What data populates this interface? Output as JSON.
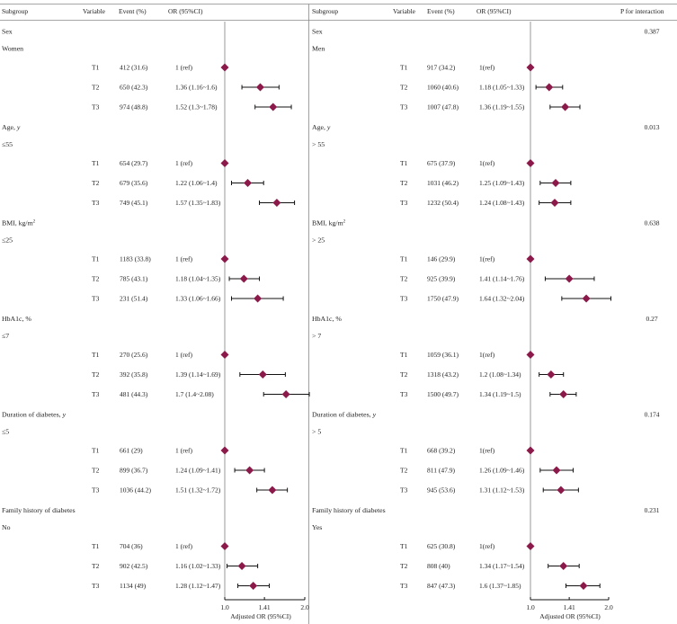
{
  "chart_data": {
    "type": "forest",
    "x_scale": "log",
    "x_ticks": [
      {
        "value": 1.0,
        "label": "1.0"
      },
      {
        "value": 1.41,
        "label": "1.41"
      },
      {
        "value": 2.0,
        "label": "2.0"
      }
    ],
    "xlabel": "Adjusted OR (95%CI)",
    "colors": {
      "marker": "#8b1a4a",
      "line": "#111111",
      "ref_line": "#999999",
      "rule": "#888888"
    },
    "headers": {
      "subgroup": "Subgroup",
      "variable": "Variable",
      "event": "Event (%)",
      "or": "OR (95%CI)",
      "p_interaction": "P for interaction"
    },
    "panels": [
      {
        "name": "left",
        "blocks": [
          {
            "title": "Sex",
            "title_html": "Sex",
            "level": "Women",
            "level_html": "Women",
            "p": "",
            "rows": [
              {
                "variable": "T1",
                "event": "412 (31.6)",
                "or_text": "1 (ref)",
                "or": 1.0,
                "lo": null,
                "hi": null
              },
              {
                "variable": "T2",
                "event": "650 (42.3)",
                "or_text": "1.36 (1.16~1.6)",
                "or": 1.36,
                "lo": 1.16,
                "hi": 1.6
              },
              {
                "variable": "T3",
                "event": "974 (48.8)",
                "or_text": "1.52 (1.3~1.78)",
                "or": 1.52,
                "lo": 1.3,
                "hi": 1.78
              }
            ]
          },
          {
            "title": "Age, y",
            "title_html": "Age, <tspan font-style=\"italic\">y</tspan>",
            "level": "≤55",
            "level_html": "≤55",
            "p": "",
            "rows": [
              {
                "variable": "T1",
                "event": "654 (29.7)",
                "or_text": "1 (ref)",
                "or": 1.0,
                "lo": null,
                "hi": null
              },
              {
                "variable": "T2",
                "event": "679 (35.6)",
                "or_text": "1.22 (1.06~1.4)",
                "or": 1.22,
                "lo": 1.06,
                "hi": 1.4
              },
              {
                "variable": "T3",
                "event": "749 (45.1)",
                "or_text": "1.57 (1.35~1.83)",
                "or": 1.57,
                "lo": 1.35,
                "hi": 1.83
              }
            ]
          },
          {
            "title": "BMI, kg/m2",
            "title_html": "BMI, kg/m<tspan font-size=\"5\" dy=\"-3\">2</tspan>",
            "level": "≤25",
            "level_html": "≤25",
            "p": "",
            "rows": [
              {
                "variable": "T1",
                "event": "1183 (33.8)",
                "or_text": "1 (ref)",
                "or": 1.0,
                "lo": null,
                "hi": null
              },
              {
                "variable": "T2",
                "event": "785 (43.1)",
                "or_text": "1.18 (1.04~1.35)",
                "or": 1.18,
                "lo": 1.04,
                "hi": 1.35
              },
              {
                "variable": "T3",
                "event": "231 (51.4)",
                "or_text": "1.33 (1.06~1.66)",
                "or": 1.33,
                "lo": 1.06,
                "hi": 1.66
              }
            ]
          },
          {
            "title": "HbA1c, %",
            "title_html": "HbA1c, %",
            "level": "≤7",
            "level_html": "≤7",
            "p": "",
            "rows": [
              {
                "variable": "T1",
                "event": "270 (25.6)",
                "or_text": "1 (ref)",
                "or": 1.0,
                "lo": null,
                "hi": null
              },
              {
                "variable": "T2",
                "event": "392 (35.8)",
                "or_text": "1.39 (1.14~1.69)",
                "or": 1.39,
                "lo": 1.14,
                "hi": 1.69
              },
              {
                "variable": "T3",
                "event": "481 (44.3)",
                "or_text": "1.7 (1.4~2.08)",
                "or": 1.7,
                "lo": 1.4,
                "hi": 2.08
              }
            ]
          },
          {
            "title": "Duration of diabetes, y",
            "title_html": "Duration of diabetes, <tspan font-style=\"italic\">y</tspan>",
            "level": "≤5",
            "level_html": "≤5",
            "p": "",
            "rows": [
              {
                "variable": "T1",
                "event": "661 (29)",
                "or_text": "1 (ref)",
                "or": 1.0,
                "lo": null,
                "hi": null
              },
              {
                "variable": "T2",
                "event": "899 (36.7)",
                "or_text": "1.24 (1.09~1.41)",
                "or": 1.24,
                "lo": 1.09,
                "hi": 1.41
              },
              {
                "variable": "T3",
                "event": "1036 (44.2)",
                "or_text": "1.51 (1.32~1.72)",
                "or": 1.51,
                "lo": 1.32,
                "hi": 1.72
              }
            ]
          },
          {
            "title": "Family history of diabetes",
            "title_html": "Family history of diabetes",
            "level": "No",
            "level_html": "No",
            "p": "",
            "rows": [
              {
                "variable": "T1",
                "event": "704 (36)",
                "or_text": "1 (ref)",
                "or": 1.0,
                "lo": null,
                "hi": null
              },
              {
                "variable": "T2",
                "event": "902 (42.5)",
                "or_text": "1.16 (1.02~1.33)",
                "or": 1.16,
                "lo": 1.02,
                "hi": 1.33
              },
              {
                "variable": "T3",
                "event": "1134 (49)",
                "or_text": "1.28 (1.12~1.47)",
                "or": 1.28,
                "lo": 1.12,
                "hi": 1.47
              }
            ]
          }
        ]
      },
      {
        "name": "right",
        "blocks": [
          {
            "title": "Sex",
            "title_html": "Sex",
            "level": "Men",
            "level_html": "Men",
            "p": "0.387",
            "rows": [
              {
                "variable": "T1",
                "event": "917 (34.2)",
                "or_text": "1(ref)",
                "or": 1.0,
                "lo": null,
                "hi": null
              },
              {
                "variable": "T2",
                "event": "1060 (40.6)",
                "or_text": "1.18 (1.05~1.33)",
                "or": 1.18,
                "lo": 1.05,
                "hi": 1.33
              },
              {
                "variable": "T3",
                "event": "1007 (47.8)",
                "or_text": "1.36 (1.19~1.55)",
                "or": 1.36,
                "lo": 1.19,
                "hi": 1.55
              }
            ]
          },
          {
            "title": "Age, y",
            "title_html": "Age, <tspan font-style=\"italic\">y</tspan>",
            "level": "> 55",
            "level_html": "&gt; 55",
            "p": "0.013",
            "rows": [
              {
                "variable": "T1",
                "event": "675 (37.9)",
                "or_text": "1(ref)",
                "or": 1.0,
                "lo": null,
                "hi": null
              },
              {
                "variable": "T2",
                "event": "1031 (46.2)",
                "or_text": "1.25 (1.09~1.43)",
                "or": 1.25,
                "lo": 1.09,
                "hi": 1.43
              },
              {
                "variable": "T3",
                "event": "1232 (50.4)",
                "or_text": "1.24 (1.08~1.43)",
                "or": 1.24,
                "lo": 1.08,
                "hi": 1.43
              }
            ]
          },
          {
            "title": "BMI, kg/m2",
            "title_html": "BMI, kg/m<tspan font-size=\"5\" dy=\"-3\">2</tspan>",
            "level": "> 25",
            "level_html": "&gt; 25",
            "p": "0.638",
            "rows": [
              {
                "variable": "T1",
                "event": "146 (29.9)",
                "or_text": "1(ref)",
                "or": 1.0,
                "lo": null,
                "hi": null
              },
              {
                "variable": "T2",
                "event": "925 (39.9)",
                "or_text": "1.41 (1.14~1.76)",
                "or": 1.41,
                "lo": 1.14,
                "hi": 1.76
              },
              {
                "variable": "T3",
                "event": "1750 (47.9)",
                "or_text": "1.64 (1.32~2.04)",
                "or": 1.64,
                "lo": 1.32,
                "hi": 2.04
              }
            ]
          },
          {
            "title": "HbA1c, %",
            "title_html": "HbA1c, %",
            "level": "> 7",
            "level_html": "&gt; 7",
            "p": "0.27",
            "rows": [
              {
                "variable": "T1",
                "event": "1059 (36.1)",
                "or_text": "1(ref)",
                "or": 1.0,
                "lo": null,
                "hi": null
              },
              {
                "variable": "T2",
                "event": "1318 (43.2)",
                "or_text": "1.2 (1.08~1.34)",
                "or": 1.2,
                "lo": 1.08,
                "hi": 1.34
              },
              {
                "variable": "T3",
                "event": "1500 (49.7)",
                "or_text": "1.34 (1.19~1.5)",
                "or": 1.34,
                "lo": 1.19,
                "hi": 1.5
              }
            ]
          },
          {
            "title": "Duration of diabetes, y",
            "title_html": "Duration of diabetes, <tspan font-style=\"italic\">y</tspan>",
            "level": "> 5",
            "level_html": "&gt; 5",
            "p": "0.174",
            "rows": [
              {
                "variable": "T1",
                "event": "668 (39.2)",
                "or_text": "1(ref)",
                "or": 1.0,
                "lo": null,
                "hi": null
              },
              {
                "variable": "T2",
                "event": "811 (47.9)",
                "or_text": "1.26 (1.09~1.46)",
                "or": 1.26,
                "lo": 1.09,
                "hi": 1.46
              },
              {
                "variable": "T3",
                "event": "945 (53.6)",
                "or_text": "1.31 (1.12~1.53)",
                "or": 1.31,
                "lo": 1.12,
                "hi": 1.53
              }
            ]
          },
          {
            "title": "Family history of diabetes",
            "title_html": "Family history of diabetes",
            "level": "Yes",
            "level_html": "Yes",
            "p": "0.231",
            "rows": [
              {
                "variable": "T1",
                "event": "625 (30.8)",
                "or_text": "1(ref)",
                "or": 1.0,
                "lo": null,
                "hi": null
              },
              {
                "variable": "T2",
                "event": "808 (40)",
                "or_text": "1.34 (1.17~1.54)",
                "or": 1.34,
                "lo": 1.17,
                "hi": 1.54
              },
              {
                "variable": "T3",
                "event": "847 (47.3)",
                "or_text": "1.6 (1.37~1.85)",
                "or": 1.6,
                "lo": 1.37,
                "hi": 1.85
              }
            ]
          }
        ]
      }
    ]
  }
}
